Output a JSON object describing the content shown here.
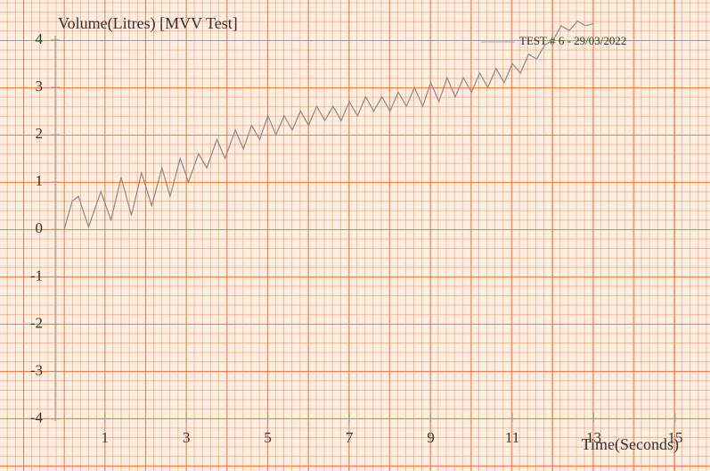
{
  "chart_data": {
    "type": "line",
    "title": "Volume(Litres)  [MVV Test]",
    "x_label": "Time(Seconds)",
    "annotation": "TEST #   6 - 29/03/2022",
    "x": [
      0,
      0.2,
      0.35,
      0.6,
      0.9,
      1.15,
      1.4,
      1.65,
      1.9,
      2.15,
      2.4,
      2.6,
      2.85,
      3.05,
      3.3,
      3.5,
      3.75,
      3.95,
      4.2,
      4.4,
      4.6,
      4.8,
      5.0,
      5.2,
      5.4,
      5.6,
      5.8,
      6.0,
      6.2,
      6.4,
      6.6,
      6.8,
      7.0,
      7.2,
      7.4,
      7.6,
      7.8,
      8.0,
      8.2,
      8.4,
      8.6,
      8.8,
      9.0,
      9.2,
      9.4,
      9.6,
      9.8,
      10.0,
      10.2,
      10.4,
      10.6,
      10.8,
      11.0,
      11.2,
      11.4,
      11.6,
      11.8,
      12.0,
      12.2,
      12.4,
      12.6,
      12.8,
      13.0
    ],
    "values": [
      0,
      0.6,
      0.7,
      0.05,
      0.8,
      0.2,
      1.1,
      0.3,
      1.2,
      0.5,
      1.3,
      0.7,
      1.5,
      1.0,
      1.6,
      1.3,
      1.9,
      1.5,
      2.1,
      1.7,
      2.2,
      1.9,
      2.4,
      2.0,
      2.4,
      2.1,
      2.5,
      2.2,
      2.6,
      2.3,
      2.6,
      2.3,
      2.7,
      2.4,
      2.8,
      2.5,
      2.8,
      2.5,
      2.9,
      2.6,
      3.0,
      2.6,
      3.1,
      2.7,
      3.2,
      2.8,
      3.2,
      2.9,
      3.3,
      3.0,
      3.4,
      3.1,
      3.5,
      3.3,
      3.7,
      3.6,
      3.9,
      4.0,
      4.3,
      4.2,
      4.4,
      4.3,
      4.35
    ],
    "color": "#8a8a8a",
    "xlim": [
      0,
      15
    ],
    "xticks": [
      1,
      3,
      5,
      7,
      9,
      11,
      13,
      15
    ],
    "ylim": [
      -4.1,
      4.6
    ],
    "yticks": [
      -4,
      -3,
      -2,
      -1,
      0,
      1,
      2,
      3,
      4
    ]
  }
}
